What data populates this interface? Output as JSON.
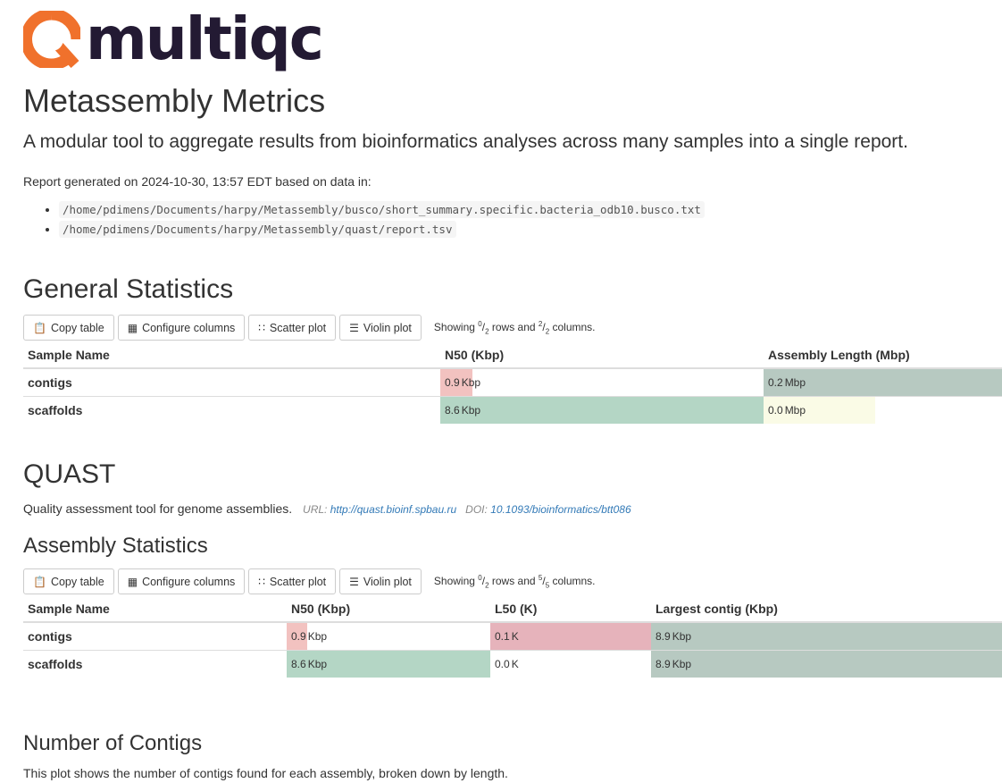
{
  "logo": {
    "text": "multiqc",
    "accent": "#f0712c"
  },
  "report": {
    "title": "Metassembly Metrics",
    "lead": "A modular tool to aggregate results from bioinformatics analyses across many samples into a single report.",
    "generated": "Report generated on 2024-10-30, 13:57 EDT based on data in:",
    "files": [
      "/home/pdimens/Documents/harpy/Metassembly/busco/short_summary.specific.bacteria_odb10.busco.txt",
      "/home/pdimens/Documents/harpy/Metassembly/quast/report.tsv"
    ]
  },
  "buttons": {
    "copy": "Copy table",
    "configure": "Configure columns",
    "scatter": "Scatter plot",
    "violin": "Violin plot"
  },
  "general": {
    "title": "General Statistics",
    "showing": {
      "pre": "Showing ",
      "rows_sup": "0",
      "rows_sub": "2",
      "mid": " rows and ",
      "cols_sup": "2",
      "cols_sub": "2",
      "post": " columns."
    },
    "headers": [
      "Sample Name",
      "N50 (Kbp)",
      "Assembly Length (Mbp)"
    ],
    "rows": [
      {
        "name": "contigs",
        "n50": "0.9",
        "n50_unit": "Kbp",
        "n50_fill": 0.1,
        "len": "0.2",
        "len_unit": "Mbp",
        "len_fill": 1.0
      },
      {
        "name": "scaffolds",
        "n50": "8.6",
        "n50_unit": "Kbp",
        "n50_fill": 1.0,
        "len": "0.0",
        "len_unit": "Mbp",
        "len_fill": 0.47
      }
    ]
  },
  "quast": {
    "title": "QUAST",
    "desc": "Quality assessment tool for genome assemblies.",
    "url_label": "URL:",
    "url": "http://quast.bioinf.spbau.ru",
    "doi_label": "DOI:",
    "doi": "10.1093/bioinformatics/btt086",
    "assembly": {
      "title": "Assembly Statistics",
      "showing": {
        "pre": "Showing ",
        "rows_sup": "0",
        "rows_sub": "2",
        "mid": " rows and ",
        "cols_sup": "5",
        "cols_sub": "5",
        "post": " columns."
      },
      "headers": [
        "Sample Name",
        "N50 (Kbp)",
        "L50 (K)",
        "Largest contig (Kbp)"
      ],
      "rows": [
        {
          "name": "contigs",
          "n50": "0.9",
          "n50_unit": "Kbp",
          "n50_fill": 0.1,
          "l50": "0.1",
          "l50_unit": "K",
          "l50_fill": 1.0,
          "lc": "8.9",
          "lc_unit": "Kbp",
          "lc_fill": 1.0
        },
        {
          "name": "scaffolds",
          "n50": "8.6",
          "n50_unit": "Kbp",
          "n50_fill": 1.0,
          "l50": "0.0",
          "l50_unit": "K",
          "l50_fill": 0.0,
          "lc": "8.9",
          "lc_unit": "Kbp",
          "lc_fill": 1.0
        }
      ]
    },
    "contigs": {
      "title": "Number of Contigs",
      "desc": "This plot shows the number of contigs found for each assembly, broken down by length."
    }
  },
  "colors": {
    "red": "#f2c2c0",
    "green": "#b4d6c5",
    "grey": "#b7c9c1",
    "yellow": "#fafbe6",
    "pink": "#e6b3bb"
  }
}
